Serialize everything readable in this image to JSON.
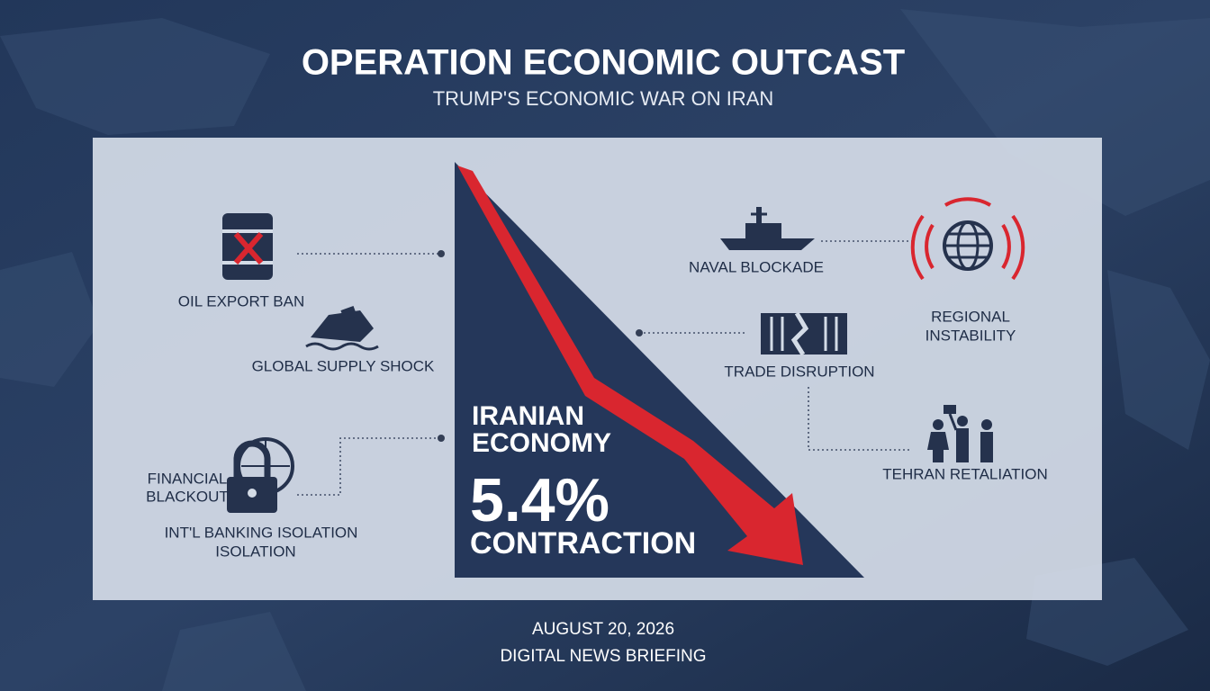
{
  "header": {
    "title": "OPERATION ECONOMIC OUTCAST",
    "subtitle": "TRUMP'S ECONOMIC WAR ON IRAN"
  },
  "callouts": {
    "oil": {
      "lines": [
        "OIL EXPORT BAN"
      ]
    },
    "supply": {
      "lines": [
        "GLOBAL SUPPLY SHOCK"
      ]
    },
    "financial": {
      "lines": [
        "FINANCIAL",
        "BLACKOUT"
      ]
    },
    "banking": {
      "lines": [
        "INT'L BANKING ISOLATION",
        "ISOLATION"
      ]
    },
    "naval": {
      "lines": [
        "NAVAL BLOCKADE"
      ]
    },
    "regional": {
      "lines": [
        "REGIONAL",
        "INSTABILITY"
      ]
    },
    "trade": {
      "lines": [
        "TRADE DISRUPTION"
      ]
    },
    "tehran": {
      "lines": [
        "TEHRAN RETALIATION"
      ]
    }
  },
  "center": {
    "lines": [
      "IRANIAN",
      "ECONOMY"
    ],
    "figure": "5.4%",
    "caption": "CONTRACTION"
  },
  "footer": {
    "date": "AUGUST 20, 2026",
    "source": "DIGITAL NEWS BRIEFING"
  }
}
